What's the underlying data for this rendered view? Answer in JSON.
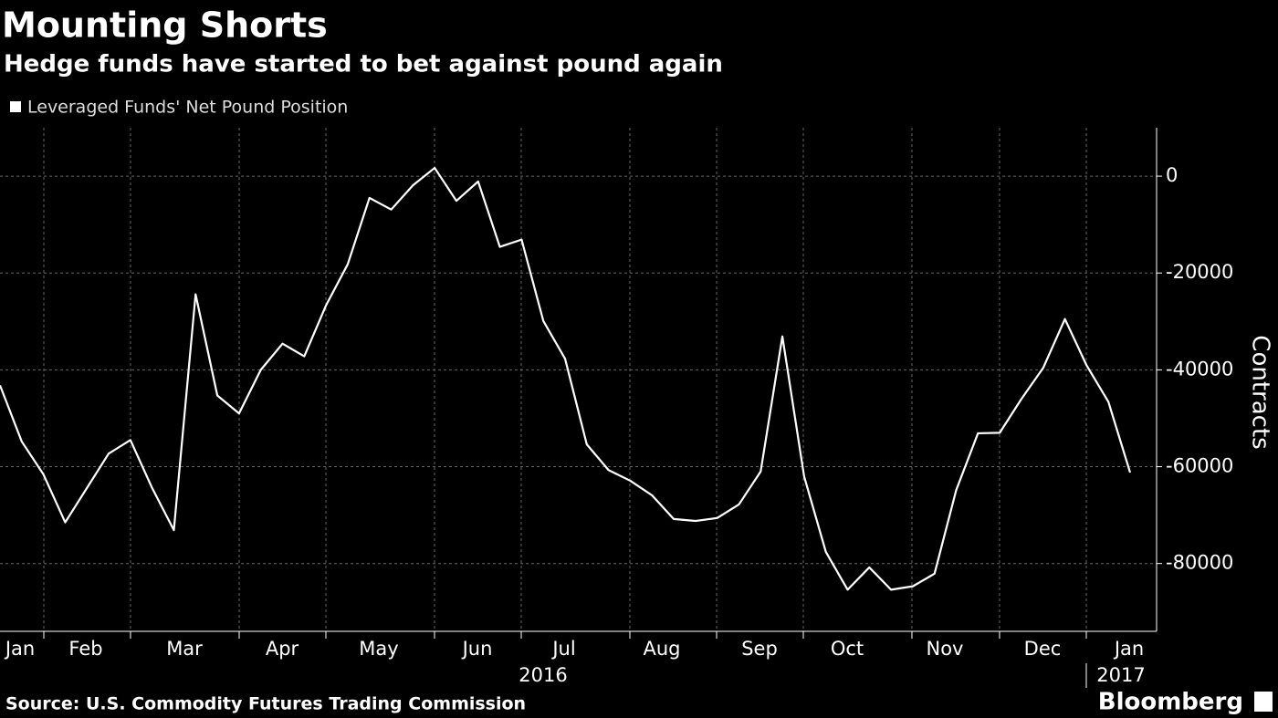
{
  "chart_data": {
    "type": "line",
    "title": "Mounting Shorts",
    "subtitle": "Hedge funds have started to bet against pound again",
    "series": [
      {
        "name": "Leveraged Funds' Net Pound Position",
        "color": "#ffffff",
        "values": [
          -43200,
          -54800,
          -61600,
          -71500,
          -64400,
          -57300,
          -54500,
          -64400,
          -73100,
          -24400,
          -45300,
          -49000,
          -40000,
          -34600,
          -37200,
          -26700,
          -18200,
          -4500,
          -6900,
          -1900,
          1700,
          -5100,
          -1100,
          -14600,
          -13100,
          -29900,
          -37700,
          -55400,
          -60700,
          -62900,
          -65900,
          -70800,
          -71200,
          -70600,
          -67800,
          -61000,
          -33100,
          -62000,
          -77600,
          -85400,
          -80800,
          -85400,
          -84700,
          -82100,
          -64800,
          -53100,
          -53000,
          -46000,
          -39600,
          -29500,
          -39100,
          -46600,
          -61200
        ]
      }
    ],
    "xtick_labels": [
      "Jan",
      "Feb",
      "Mar",
      "Apr",
      "May",
      "Jun",
      "Jul",
      "Aug",
      "Sep",
      "Oct",
      "Nov",
      "Dec",
      "Jan"
    ],
    "year_labels": [
      "2016",
      "2017"
    ],
    "ylim": [
      -94000,
      10000
    ],
    "yticks": [
      0,
      -20000,
      -40000,
      -60000,
      -80000
    ],
    "y_label": "Contracts",
    "grid": true,
    "source": "Source: U.S. Commodity Futures Trading Commission",
    "brand": "Bloomberg"
  }
}
